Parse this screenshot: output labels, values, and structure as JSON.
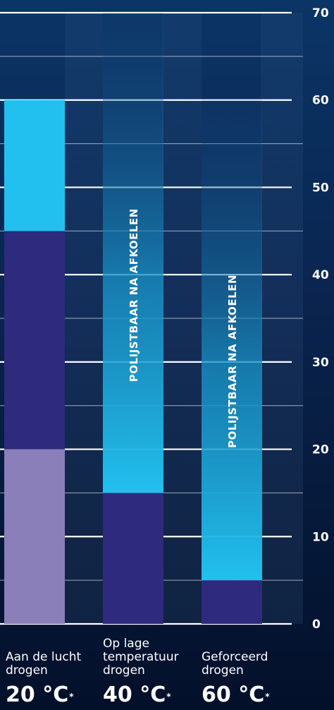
{
  "chart_data": {
    "type": "bar",
    "ylim": [
      0,
      70
    ],
    "y_ticks": [
      "0",
      "10",
      "20",
      "30",
      "40",
      "50",
      "60",
      "70"
    ],
    "grid": true,
    "categories": [
      {
        "label": [
          "Aan de lucht",
          "drogen"
        ],
        "temp": "20 °C",
        "mark": "*"
      },
      {
        "label": [
          "Op lage",
          "temperatuur",
          "drogen"
        ],
        "temp": "40 °C",
        "mark": "*"
      },
      {
        "label": [
          "Geforceerd",
          "drogen"
        ],
        "temp": "60 °C",
        "mark": "*"
      }
    ],
    "bars": [
      {
        "segments": [
          {
            "from": 0,
            "to": 20,
            "color": "#8a7fb8"
          },
          {
            "from": 20,
            "to": 45,
            "color": "#2e2a7e"
          },
          {
            "from": 45,
            "to": 60,
            "color": "#22c0ee"
          }
        ]
      },
      {
        "segments": [
          {
            "from": 0,
            "to": 15,
            "color": "#2e2a7e"
          },
          {
            "from": 15,
            "to": 70,
            "gradient": [
              "#22c0ee",
              "#0b3566"
            ],
            "text": "POLIJSTBAAR NA AFKOELEN"
          }
        ]
      },
      {
        "segments": [
          {
            "from": 0,
            "to": 5,
            "color": "#2e2a7e"
          },
          {
            "from": 5,
            "to": 60,
            "gradient": [
              "#22c0ee",
              "#0b3566"
            ],
            "text": "POLIJSTBAAR NA AFKOELEN"
          }
        ]
      }
    ]
  }
}
